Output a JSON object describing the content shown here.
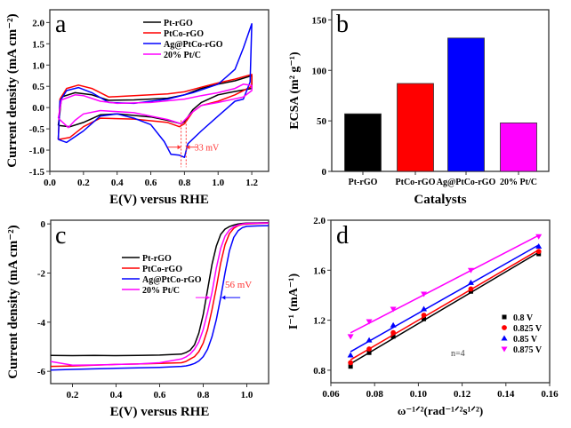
{
  "chart_data": [
    {
      "panel": "a",
      "type": "line",
      "xlabel": "E(V) versus RHE",
      "ylabel": "Current density (mA cm⁻²)",
      "xlim": [
        0,
        1.3
      ],
      "ylim": [
        -1.5,
        2.3
      ],
      "xticks": [
        "0.0",
        "0.2",
        "0.4",
        "0.6",
        "0.8",
        "1.0",
        "1.2"
      ],
      "yticks": [
        "-1.5",
        "-1.0",
        "-0.5",
        "0.0",
        "0.5",
        "1.0",
        "1.5",
        "2.0"
      ],
      "legend": "top-left",
      "series": [
        {
          "name": "Pt-rGO",
          "color": "#000000",
          "points": [
            [
              0.05,
              -0.42
            ],
            [
              0.06,
              -0.1
            ],
            [
              0.07,
              0.25
            ],
            [
              0.15,
              0.35
            ],
            [
              0.25,
              0.3
            ],
            [
              0.35,
              0.17
            ],
            [
              0.5,
              0.18
            ],
            [
              0.7,
              0.22
            ],
            [
              0.8,
              0.3
            ],
            [
              0.9,
              0.45
            ],
            [
              1.0,
              0.55
            ],
            [
              1.1,
              0.63
            ],
            [
              1.2,
              0.75
            ],
            [
              1.2,
              0.45
            ],
            [
              1.1,
              0.38
            ],
            [
              1.0,
              0.3
            ],
            [
              0.9,
              0.12
            ],
            [
              0.85,
              -0.05
            ],
            [
              0.8,
              -0.33
            ],
            [
              0.78,
              -0.38
            ],
            [
              0.7,
              -0.3
            ],
            [
              0.6,
              -0.22
            ],
            [
              0.4,
              -0.15
            ],
            [
              0.3,
              -0.17
            ],
            [
              0.2,
              -0.35
            ],
            [
              0.12,
              -0.45
            ],
            [
              0.05,
              -0.42
            ]
          ]
        },
        {
          "name": "PtCo-rGO",
          "color": "#ff0000",
          "points": [
            [
              0.05,
              -0.75
            ],
            [
              0.06,
              0.2
            ],
            [
              0.1,
              0.45
            ],
            [
              0.17,
              0.53
            ],
            [
              0.25,
              0.45
            ],
            [
              0.35,
              0.25
            ],
            [
              0.5,
              0.28
            ],
            [
              0.7,
              0.32
            ],
            [
              0.8,
              0.37
            ],
            [
              0.9,
              0.48
            ],
            [
              1.0,
              0.58
            ],
            [
              1.1,
              0.67
            ],
            [
              1.2,
              0.78
            ],
            [
              1.2,
              0.5
            ],
            [
              1.1,
              0.3
            ],
            [
              1.0,
              0.15
            ],
            [
              0.9,
              0.05
            ],
            [
              0.85,
              -0.1
            ],
            [
              0.8,
              -0.38
            ],
            [
              0.77,
              -0.45
            ],
            [
              0.7,
              -0.35
            ],
            [
              0.5,
              -0.27
            ],
            [
              0.3,
              -0.25
            ],
            [
              0.2,
              -0.45
            ],
            [
              0.12,
              -0.7
            ],
            [
              0.05,
              -0.75
            ]
          ]
        },
        {
          "name": "Ag@PtCo-rGO",
          "color": "#0000ff",
          "points": [
            [
              0.05,
              -0.75
            ],
            [
              0.06,
              0.15
            ],
            [
              0.1,
              0.4
            ],
            [
              0.17,
              0.47
            ],
            [
              0.25,
              0.35
            ],
            [
              0.35,
              0.12
            ],
            [
              0.5,
              0.1
            ],
            [
              0.7,
              0.2
            ],
            [
              0.85,
              0.35
            ],
            [
              1.0,
              0.55
            ],
            [
              1.1,
              0.9
            ],
            [
              1.15,
              1.4
            ],
            [
              1.2,
              1.97
            ],
            [
              1.19,
              0.6
            ],
            [
              1.15,
              0.2
            ],
            [
              1.1,
              0.15
            ],
            [
              1.0,
              -0.2
            ],
            [
              0.9,
              -0.55
            ],
            [
              0.82,
              -0.85
            ],
            [
              0.8,
              -1.17
            ],
            [
              0.77,
              -1.12
            ],
            [
              0.72,
              -1.1
            ],
            [
              0.68,
              -0.8
            ],
            [
              0.6,
              -0.4
            ],
            [
              0.5,
              -0.25
            ],
            [
              0.4,
              -0.15
            ],
            [
              0.3,
              -0.2
            ],
            [
              0.2,
              -0.55
            ],
            [
              0.1,
              -0.82
            ],
            [
              0.05,
              -0.75
            ]
          ]
        },
        {
          "name": "20% Pt/C",
          "color": "#ff00ff",
          "points": [
            [
              0.05,
              -0.25
            ],
            [
              0.07,
              0.18
            ],
            [
              0.15,
              0.3
            ],
            [
              0.2,
              0.28
            ],
            [
              0.3,
              0.15
            ],
            [
              0.4,
              0.1
            ],
            [
              0.6,
              0.12
            ],
            [
              0.8,
              0.2
            ],
            [
              0.9,
              0.28
            ],
            [
              1.0,
              0.35
            ],
            [
              1.1,
              0.45
            ],
            [
              1.15,
              0.55
            ],
            [
              1.2,
              0.52
            ],
            [
              1.2,
              0.4
            ],
            [
              1.15,
              0.25
            ],
            [
              1.0,
              0.12
            ],
            [
              0.9,
              0.05
            ],
            [
              0.85,
              -0.1
            ],
            [
              0.8,
              -0.3
            ],
            [
              0.78,
              -0.38
            ],
            [
              0.7,
              -0.28
            ],
            [
              0.5,
              -0.12
            ],
            [
              0.3,
              -0.07
            ],
            [
              0.2,
              -0.15
            ],
            [
              0.15,
              -0.3
            ],
            [
              0.11,
              -0.47
            ],
            [
              0.05,
              -0.25
            ]
          ]
        }
      ],
      "annotation": {
        "text": "33 mV",
        "potentials": [
          0.78,
          0.81
        ],
        "color": "#ff3333"
      }
    },
    {
      "panel": "b",
      "type": "bar",
      "xlabel": "Catalysts",
      "ylabel": "ECSA (m² g⁻¹)",
      "ylim": [
        0,
        160
      ],
      "yticks": [
        "0",
        "50",
        "100",
        "150"
      ],
      "categories": [
        "Pt-rGO",
        "PtCo-rGO",
        "Ag@PtCo-rGO",
        "20% Pt/C"
      ],
      "values": [
        57,
        87,
        132,
        48
      ],
      "colors": [
        "#000000",
        "#ff0000",
        "#0000ff",
        "#ff00ff"
      ]
    },
    {
      "panel": "c",
      "type": "line",
      "xlabel": "E(V) versus RHE",
      "ylabel": "Current density (mA cm⁻²)",
      "xlim": [
        0.1,
        1.1
      ],
      "ylim": [
        -6.5,
        0.15
      ],
      "xticks": [
        "0.2",
        "0.4",
        "0.6",
        "0.8",
        "1.0"
      ],
      "yticks": [
        "-6",
        "-4",
        "-2",
        "0"
      ],
      "legend": "center-left",
      "x": [
        0.1,
        0.2,
        0.3,
        0.4,
        0.5,
        0.6,
        0.7,
        0.72,
        0.74,
        0.76,
        0.78,
        0.8,
        0.82,
        0.84,
        0.86,
        0.88,
        0.9,
        0.92,
        0.94,
        0.96,
        0.98,
        1.0,
        1.05,
        1.1
      ],
      "series": [
        {
          "name": "Pt-rGO",
          "color": "#000000",
          "values": [
            -5.35,
            -5.36,
            -5.35,
            -5.36,
            -5.35,
            -5.34,
            -5.3,
            -5.24,
            -5.14,
            -4.92,
            -4.44,
            -3.69,
            -2.68,
            -1.66,
            -0.91,
            -0.43,
            -0.21,
            -0.11,
            -0.05,
            0,
            0.02,
            0.03,
            0.04,
            0.05
          ]
        },
        {
          "name": "PtCo-rGO",
          "color": "#ff0000",
          "values": [
            -5.8,
            -5.78,
            -5.75,
            -5.72,
            -5.7,
            -5.68,
            -5.65,
            -5.6,
            -5.5,
            -5.4,
            -5.2,
            -4.85,
            -4.3,
            -3.5,
            -2.6,
            -1.6,
            -0.85,
            -0.4,
            -0.18,
            -0.07,
            -0.02,
            0,
            0.02,
            0.03
          ]
        },
        {
          "name": "Ag@PtCo-rGO",
          "color": "#0000ff",
          "values": [
            -5.95,
            -5.92,
            -5.9,
            -5.88,
            -5.86,
            -5.84,
            -5.8,
            -5.78,
            -5.74,
            -5.68,
            -5.58,
            -5.4,
            -5.1,
            -4.6,
            -3.9,
            -3.0,
            -2.0,
            -1.1,
            -0.55,
            -0.28,
            -0.15,
            -0.1,
            -0.08,
            -0.07
          ]
        },
        {
          "name": "20% Pt/C",
          "color": "#ff00ff",
          "values": [
            -5.6,
            -5.75,
            -5.74,
            -5.72,
            -5.7,
            -5.65,
            -5.5,
            -5.42,
            -5.3,
            -5.1,
            -4.8,
            -4.3,
            -3.6,
            -2.8,
            -1.8,
            -1.0,
            -0.5,
            -0.25,
            -0.12,
            -0.05,
            0,
            0.02,
            0.03,
            0.04
          ]
        }
      ],
      "annotation": {
        "text": "56 mV",
        "color": "#ff3333"
      }
    },
    {
      "panel": "d",
      "type": "scatter",
      "xlabel": "ω⁻¹ᐟ²(rad⁻¹ᐟ²s¹ᐟ²)",
      "ylabel": "I⁻¹ (mA⁻¹)",
      "xlim": [
        0.06,
        0.16
      ],
      "ylim": [
        0.7,
        2.0
      ],
      "xticks": [
        "0.06",
        "0.08",
        "0.10",
        "0.12",
        "0.14",
        "0.16"
      ],
      "yticks": [
        "0.8",
        "1.2",
        "1.6",
        "2.0"
      ],
      "legend": "right",
      "fit": "linear",
      "x": [
        0.069,
        0.0775,
        0.0885,
        0.1025,
        0.124,
        0.155
      ],
      "series": [
        {
          "name": "0.8 V",
          "color": "#000000",
          "marker": "square",
          "values": [
            0.83,
            0.94,
            1.07,
            1.21,
            1.43,
            1.73
          ]
        },
        {
          "name": "0.825 V",
          "color": "#ff0000",
          "marker": "circle",
          "values": [
            0.86,
            0.97,
            1.1,
            1.24,
            1.45,
            1.75
          ]
        },
        {
          "name": "0.85 V",
          "color": "#0000ff",
          "marker": "triangle-up",
          "values": [
            0.92,
            1.04,
            1.16,
            1.29,
            1.5,
            1.79
          ]
        },
        {
          "name": "0.875 V",
          "color": "#ff00ff",
          "marker": "triangle-down",
          "values": [
            1.07,
            1.19,
            1.29,
            1.41,
            1.6,
            1.87
          ]
        }
      ],
      "annotation": {
        "text": "n=4"
      }
    }
  ]
}
